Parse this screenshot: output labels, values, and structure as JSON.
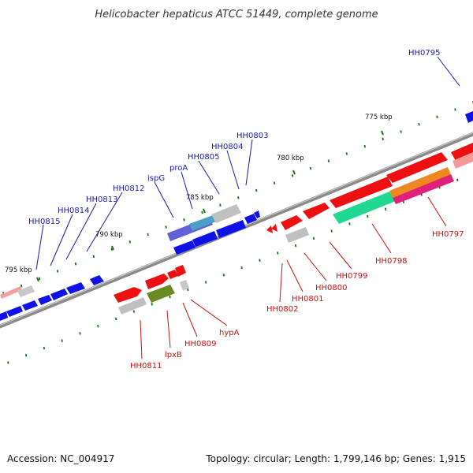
{
  "title": "Helicobacter hepaticus ATCC 51449, complete genome",
  "footer": {
    "accession": "Accession: NC_004917",
    "summary": "Topology: circular; Length: 1,799,146 bp; Genes: 1,915"
  },
  "ruler": [
    "795 kbp",
    "790 kbp",
    "785 kbp",
    "780 kbp",
    "775 kbp"
  ],
  "colors": {
    "forward_strand_label": "#1a1aaa",
    "reverse_strand_label": "#cc1111",
    "forward_gene": "#0000ee",
    "reverse_gene": "#ee0000",
    "tick": "#117711",
    "backbone": "#888888"
  },
  "upper_labels": [
    "HH0815",
    "HH0814",
    "HH0813",
    "HH0812",
    "ispG",
    "proA",
    "HH0805",
    "HH0804",
    "HH0803",
    "HH0795"
  ],
  "lower_labels": [
    "HH0811",
    "lpxB",
    "HH0809",
    "hypA",
    "HH0802",
    "HH0801",
    "HH0800",
    "HH0799",
    "HH0798",
    "HH0797"
  ]
}
